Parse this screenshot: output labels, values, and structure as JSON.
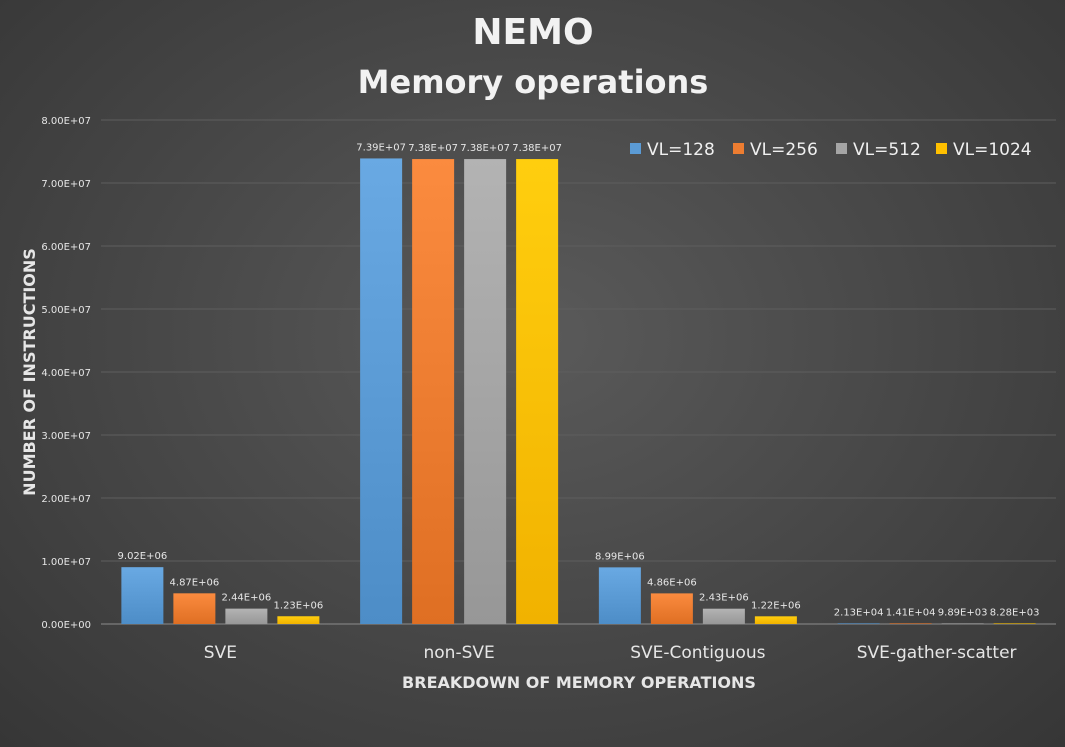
{
  "chart_data": {
    "type": "bar",
    "title": "NEMO",
    "subtitle": "Memory operations",
    "xlabel": "BREAKDOWN OF MEMORY OPERATIONS",
    "ylabel": "NUMBER OF INSTRUCTIONS",
    "ylim": [
      0,
      80000000
    ],
    "yticks": [
      0,
      10000000,
      20000000,
      30000000,
      40000000,
      50000000,
      60000000,
      70000000,
      80000000
    ],
    "ytick_labels": [
      "0.00E+00",
      "1.00E+07",
      "2.00E+07",
      "3.00E+07",
      "4.00E+07",
      "5.00E+07",
      "6.00E+07",
      "7.00E+07",
      "8.00E+07"
    ],
    "grid": true,
    "legend_position": "top-right",
    "categories": [
      "SVE",
      "non-SVE",
      "SVE-Contiguous",
      "SVE-gather-scatter"
    ],
    "series": [
      {
        "name": "VL=128",
        "color": "#5b9bd5",
        "values": [
          9020000,
          73900000,
          8990000,
          21300
        ],
        "labels": [
          "9.02E+06",
          "7.39E+07",
          "8.99E+06",
          "2.13E+04"
        ]
      },
      {
        "name": "VL=256",
        "color": "#ed7d31",
        "values": [
          4870000,
          73800000,
          4860000,
          14100
        ],
        "labels": [
          "4.87E+06",
          "7.38E+07",
          "4.86E+06",
          "1.41E+04"
        ]
      },
      {
        "name": "VL=512",
        "color": "#a5a5a5",
        "values": [
          2440000,
          73800000,
          2430000,
          9890
        ],
        "labels": [
          "2.44E+06",
          "7.38E+07",
          "2.43E+06",
          "9.89E+03"
        ]
      },
      {
        "name": "VL=1024",
        "color": "#ffc000",
        "values": [
          1230000,
          73800000,
          1220000,
          8280
        ],
        "labels": [
          "1.23E+06",
          "7.38E+07",
          "1.22E+06",
          "8.28E+03"
        ]
      }
    ]
  }
}
